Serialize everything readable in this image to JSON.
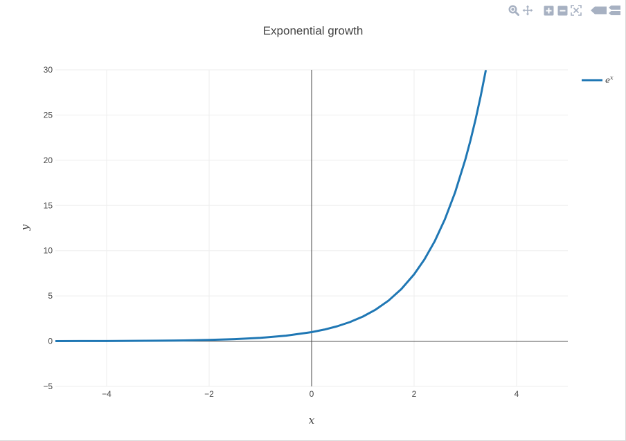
{
  "colors": {
    "line": "#1f77b4",
    "grid": "#eeeeee",
    "axis": "#444444",
    "zero_line": "#444444",
    "text": "#444444",
    "modebar_icon": "#a7b1c2"
  },
  "modebar": {
    "icons": [
      "zoom-icon",
      "pan-icon",
      "zoom-in-icon",
      "zoom-out-icon",
      "autoscale-icon",
      "hover-closest-icon",
      "hover-compare-icon"
    ]
  },
  "chart_data": {
    "type": "line",
    "title": "Exponential growth",
    "xlabel": "x",
    "ylabel": "y",
    "xlim": [
      -5,
      5
    ],
    "ylim": [
      -5,
      30
    ],
    "x_ticks": [
      -4,
      -2,
      0,
      2,
      4
    ],
    "x_tick_labels": [
      "−4",
      "−2",
      "0",
      "2",
      "4"
    ],
    "y_ticks": [
      -5,
      0,
      5,
      10,
      15,
      20,
      25,
      30
    ],
    "y_tick_labels": [
      "−5",
      "0",
      "5",
      "10",
      "15",
      "20",
      "25",
      "30"
    ],
    "grid": true,
    "legend_position": "top-right",
    "series": [
      {
        "name": "e^x",
        "legend_label_base": "e",
        "legend_label_sup": "x",
        "x": [
          -5,
          -4.5,
          -4,
          -3.5,
          -3,
          -2.5,
          -2,
          -1.5,
          -1,
          -0.5,
          0,
          0.25,
          0.5,
          0.75,
          1,
          1.25,
          1.5,
          1.75,
          2,
          2.2,
          2.4,
          2.6,
          2.8,
          3,
          3.1,
          3.2,
          3.3,
          3.4
        ],
        "y": [
          0.0067,
          0.0111,
          0.0183,
          0.0302,
          0.0498,
          0.0821,
          0.1353,
          0.2231,
          0.3679,
          0.6065,
          1,
          1.284,
          1.6487,
          2.117,
          2.7183,
          3.4903,
          4.4817,
          5.7546,
          7.3891,
          9.025,
          11.0232,
          13.4637,
          16.4446,
          20.0855,
          22.198,
          24.5325,
          27.1126,
          29.9641
        ]
      }
    ]
  }
}
